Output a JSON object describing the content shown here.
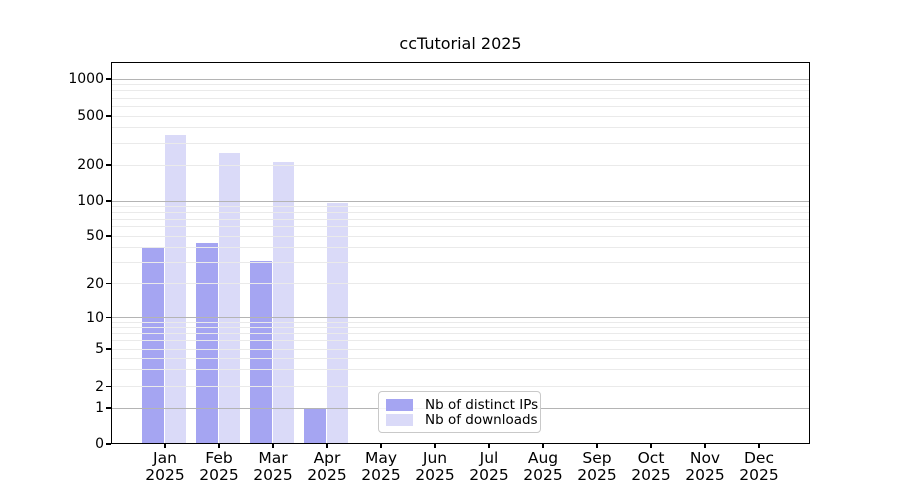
{
  "title": "ccTutorial 2025",
  "chart_data": {
    "type": "bar",
    "title": "ccTutorial 2025",
    "categories": [
      "Jan",
      "Feb",
      "Mar",
      "Apr",
      "May",
      "Jun",
      "Jul",
      "Aug",
      "Sep",
      "Oct",
      "Nov",
      "Dec"
    ],
    "year": "2025",
    "series": [
      {
        "name": "Nb of distinct IPs",
        "color": "#a5a5f2",
        "values": [
          40,
          44,
          31,
          1,
          0,
          0,
          0,
          0,
          0,
          0,
          0,
          0
        ]
      },
      {
        "name": "Nb of downloads",
        "color": "#dadaf8",
        "values": [
          350,
          250,
          210,
          97,
          0,
          0,
          0,
          0,
          0,
          0,
          0,
          0
        ]
      }
    ],
    "yticks": [
      0,
      1,
      2,
      5,
      10,
      20,
      50,
      100,
      200,
      500,
      1000
    ],
    "ylim": [
      0,
      1400
    ],
    "yscale": "log-like with zero baseline",
    "xlabel": "",
    "ylabel": "",
    "grid": "horizontal major and minor gridlines, drawn over bars",
    "legend_position": "inside plot, lower center-left"
  },
  "colors": {
    "background": "#ffffff",
    "spine": "#000000",
    "major_grid": "#b4b4b4",
    "minor_grid": "#eaeaea",
    "legend_border": "#c9c9c9"
  }
}
